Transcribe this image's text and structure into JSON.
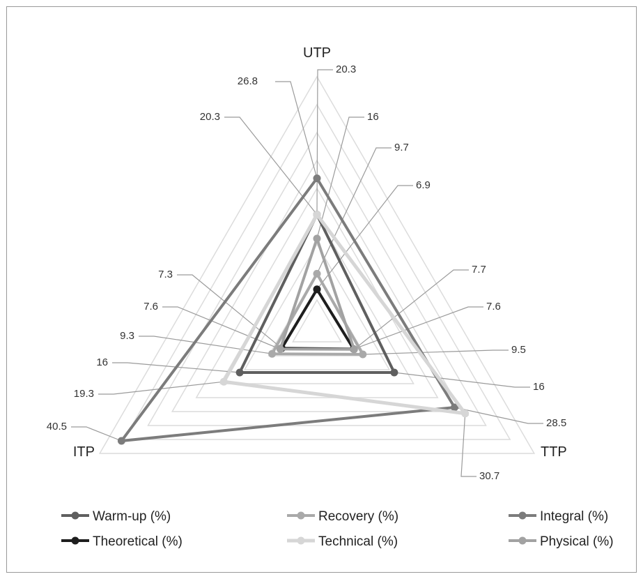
{
  "chart_data": {
    "type": "radar",
    "categories": [
      "UTP",
      "TTP",
      "ITP"
    ],
    "rmax": 45,
    "grid_step": 5,
    "series": [
      {
        "name": "Warm-up (%)",
        "values": [
          20.3,
          16,
          16
        ],
        "color": "#5f5f5f",
        "width": 4
      },
      {
        "name": "Recovery (%)",
        "values": [
          9.7,
          9.5,
          9.3
        ],
        "color": "#a9a9a9",
        "width": 4
      },
      {
        "name": "Integral (%)",
        "values": [
          26.8,
          28.5,
          40.5
        ],
        "color": "#7c7c7c",
        "width": 4
      },
      {
        "name": "Theoretical (%)",
        "values": [
          6.9,
          7.6,
          7.3
        ],
        "color": "#1e1e1e",
        "width": 4
      },
      {
        "name": "Technical (%)",
        "values": [
          20.3,
          30.7,
          19.3
        ],
        "color": "#d6d6d6",
        "width": 5
      },
      {
        "name": "Physical (%)",
        "values": [
          16,
          7.7,
          7.6
        ],
        "color": "#a2a2a2",
        "width": 4
      }
    ],
    "data_labels": {
      "UTP": [
        "26.8",
        "20.3",
        "20.3",
        "16",
        "9.7",
        "6.9"
      ],
      "TTP": [
        "7.7",
        "7.6",
        "9.5",
        "16",
        "28.5",
        "30.7"
      ],
      "ITP": [
        "7.3",
        "7.6",
        "9.3",
        "16",
        "19.3",
        "40.5"
      ]
    },
    "legend": {
      "position": "bottom",
      "columns": 3
    },
    "grid": true
  }
}
